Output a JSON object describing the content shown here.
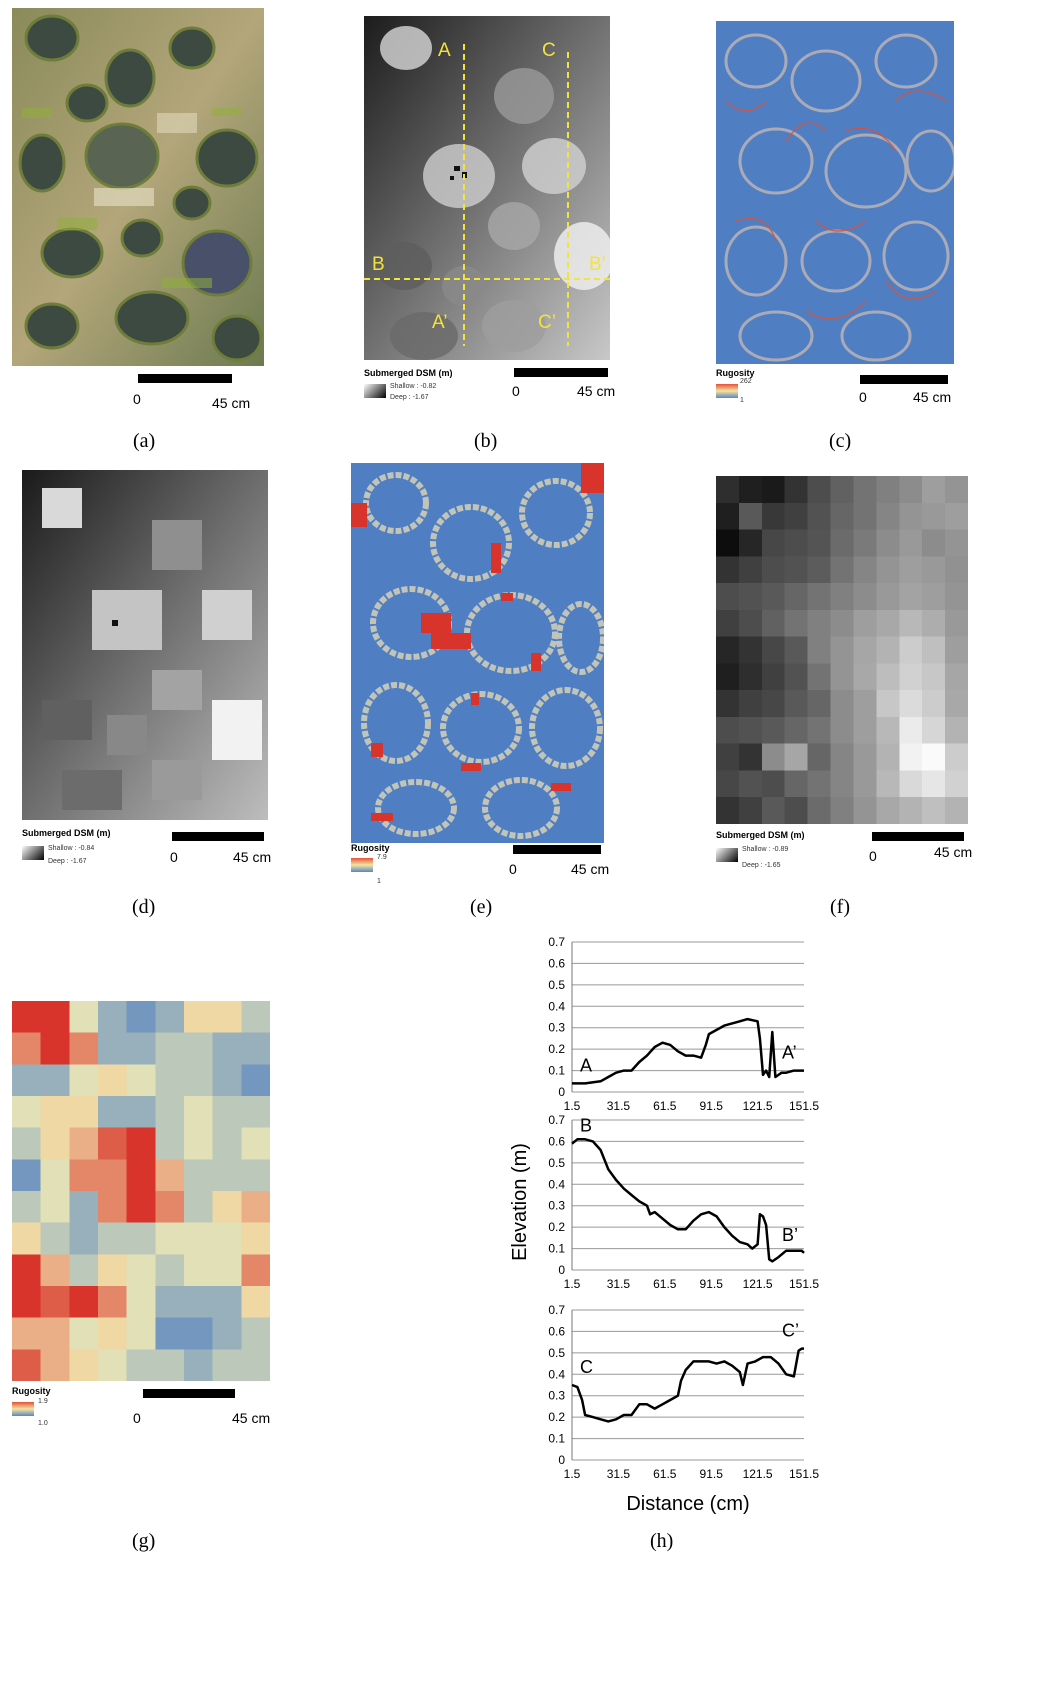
{
  "scale": {
    "zero": "0",
    "dist": "45 cm"
  },
  "captions": {
    "a": "(a)",
    "b": "(b)",
    "c": "(c)",
    "d": "(d)",
    "e": "(e)",
    "f": "(f)",
    "g": "(g)",
    "h": "(h)"
  },
  "panel_b": {
    "labels": {
      "A": "A",
      "A_prime": "A’",
      "B": "B",
      "B_prime": "B’",
      "C": "C",
      "C_prime": "C’"
    },
    "legend": {
      "title": "Submerged  DSM  (m)",
      "shallow": "Shallow : -0.82",
      "deep": "Deep : -1.67"
    }
  },
  "panel_c": {
    "legend": {
      "title": "Rugosity",
      "high": "262",
      "low": "1"
    }
  },
  "panel_d": {
    "legend": {
      "title": "Submerged  DSM  (m)",
      "shallow": "Shallow : -0.84",
      "deep": "Deep : -1.67"
    }
  },
  "panel_e": {
    "legend": {
      "title": "Rugosity",
      "high": "7.9",
      "low": "1"
    }
  },
  "panel_f": {
    "legend": {
      "title": "Submerged  DSM  (m)",
      "shallow": "Shallow : -0.89",
      "deep": "Deep : -1.65"
    },
    "grid": [
      [
        0.18,
        0.12,
        0.1,
        0.2,
        0.3,
        0.38,
        0.45,
        0.5,
        0.55,
        0.62,
        0.58
      ],
      [
        0.12,
        0.35,
        0.22,
        0.25,
        0.32,
        0.4,
        0.45,
        0.52,
        0.58,
        0.6,
        0.62
      ],
      [
        0.05,
        0.15,
        0.28,
        0.3,
        0.33,
        0.42,
        0.48,
        0.55,
        0.6,
        0.55,
        0.58
      ],
      [
        0.2,
        0.25,
        0.3,
        0.32,
        0.36,
        0.45,
        0.52,
        0.58,
        0.62,
        0.6,
        0.57
      ],
      [
        0.3,
        0.32,
        0.35,
        0.4,
        0.45,
        0.5,
        0.55,
        0.6,
        0.64,
        0.62,
        0.58
      ],
      [
        0.25,
        0.3,
        0.38,
        0.45,
        0.5,
        0.55,
        0.62,
        0.66,
        0.72,
        0.68,
        0.6
      ],
      [
        0.15,
        0.2,
        0.28,
        0.35,
        0.5,
        0.58,
        0.65,
        0.7,
        0.8,
        0.75,
        0.62
      ],
      [
        0.12,
        0.18,
        0.25,
        0.32,
        0.45,
        0.58,
        0.66,
        0.74,
        0.82,
        0.78,
        0.65
      ],
      [
        0.2,
        0.25,
        0.28,
        0.35,
        0.4,
        0.55,
        0.62,
        0.78,
        0.86,
        0.8,
        0.66
      ],
      [
        0.3,
        0.32,
        0.35,
        0.4,
        0.45,
        0.55,
        0.62,
        0.72,
        0.92,
        0.84,
        0.7
      ],
      [
        0.25,
        0.2,
        0.55,
        0.65,
        0.4,
        0.52,
        0.6,
        0.7,
        0.95,
        0.98,
        0.8
      ],
      [
        0.28,
        0.32,
        0.3,
        0.4,
        0.45,
        0.52,
        0.6,
        0.72,
        0.85,
        0.9,
        0.82
      ],
      [
        0.2,
        0.25,
        0.35,
        0.3,
        0.42,
        0.5,
        0.58,
        0.66,
        0.7,
        0.75,
        0.7
      ]
    ]
  },
  "panel_g": {
    "legend": {
      "title": "Rugosity",
      "high": "1.9",
      "low": "1.0"
    },
    "grid": [
      [
        1.9,
        1.9,
        1.4,
        1.2,
        1.1,
        1.2,
        1.5,
        1.5,
        1.3
      ],
      [
        1.7,
        1.9,
        1.7,
        1.2,
        1.2,
        1.3,
        1.3,
        1.2,
        1.2
      ],
      [
        1.2,
        1.2,
        1.4,
        1.5,
        1.4,
        1.3,
        1.3,
        1.2,
        1.1
      ],
      [
        1.4,
        1.5,
        1.5,
        1.2,
        1.2,
        1.3,
        1.4,
        1.3,
        1.3
      ],
      [
        1.3,
        1.5,
        1.6,
        1.8,
        1.9,
        1.3,
        1.4,
        1.3,
        1.4
      ],
      [
        1.1,
        1.4,
        1.7,
        1.7,
        1.9,
        1.6,
        1.3,
        1.3,
        1.3
      ],
      [
        1.3,
        1.4,
        1.2,
        1.7,
        1.9,
        1.7,
        1.3,
        1.5,
        1.6
      ],
      [
        1.5,
        1.3,
        1.2,
        1.3,
        1.3,
        1.4,
        1.4,
        1.4,
        1.5
      ],
      [
        1.9,
        1.6,
        1.3,
        1.5,
        1.4,
        1.3,
        1.4,
        1.4,
        1.7
      ],
      [
        1.9,
        1.8,
        1.9,
        1.7,
        1.4,
        1.2,
        1.2,
        1.2,
        1.5
      ],
      [
        1.6,
        1.6,
        1.4,
        1.5,
        1.4,
        1.1,
        1.1,
        1.2,
        1.3
      ],
      [
        1.8,
        1.6,
        1.5,
        1.4,
        1.3,
        1.3,
        1.2,
        1.3,
        1.3
      ]
    ]
  },
  "chart_data": {
    "type": "line",
    "xlabel": "Distance (cm)",
    "ylabel": "Elevation (m)",
    "xlim": [
      1.5,
      151.5
    ],
    "ylim": [
      0,
      0.7
    ],
    "x_ticks": [
      "1.5",
      "31.5",
      "61.5",
      "91.5",
      "121.5",
      "151.5"
    ],
    "y_ticks": [
      "0",
      "0.1",
      "0.2",
      "0.3",
      "0.4",
      "0.5",
      "0.6",
      "0.7"
    ],
    "grid": true,
    "profiles": [
      {
        "start": "A",
        "end": "A’",
        "x": [
          1.5,
          10,
          20,
          25,
          30,
          35,
          40,
          45,
          50,
          55,
          60,
          65,
          70,
          75,
          80,
          85,
          88,
          90,
          95,
          100,
          105,
          110,
          115,
          121.5,
          123,
          125,
          127,
          129,
          131,
          133,
          135,
          137,
          140,
          145,
          150,
          151.5
        ],
        "y": [
          0.04,
          0.04,
          0.05,
          0.07,
          0.09,
          0.1,
          0.1,
          0.14,
          0.17,
          0.21,
          0.23,
          0.22,
          0.19,
          0.17,
          0.17,
          0.16,
          0.22,
          0.27,
          0.29,
          0.31,
          0.32,
          0.33,
          0.34,
          0.33,
          0.25,
          0.08,
          0.1,
          0.07,
          0.28,
          0.07,
          0.08,
          0.09,
          0.09,
          0.1,
          0.1,
          0.1
        ]
      },
      {
        "start": "B",
        "end": "B’",
        "x": [
          1.5,
          5,
          10,
          15,
          20,
          25,
          30,
          35,
          40,
          45,
          50,
          52,
          55,
          60,
          65,
          70,
          75,
          80,
          85,
          90,
          95,
          100,
          105,
          110,
          115,
          118,
          121.5,
          123,
          125,
          127,
          129,
          131,
          135,
          140,
          145,
          150,
          151.5
        ],
        "y": [
          0.59,
          0.61,
          0.61,
          0.6,
          0.56,
          0.47,
          0.42,
          0.38,
          0.35,
          0.32,
          0.3,
          0.26,
          0.27,
          0.24,
          0.21,
          0.19,
          0.19,
          0.23,
          0.26,
          0.27,
          0.25,
          0.2,
          0.16,
          0.13,
          0.12,
          0.1,
          0.12,
          0.26,
          0.25,
          0.21,
          0.05,
          0.04,
          0.06,
          0.09,
          0.09,
          0.09,
          0.08
        ]
      },
      {
        "start": "C",
        "end": "C’",
        "x": [
          1.5,
          5,
          8,
          10,
          15,
          20,
          25,
          30,
          35,
          40,
          45,
          50,
          55,
          60,
          65,
          70,
          72,
          75,
          80,
          85,
          90,
          95,
          100,
          105,
          110,
          112,
          115,
          120,
          125,
          130,
          135,
          140,
          145,
          148,
          150,
          151.5
        ],
        "y": [
          0.35,
          0.34,
          0.28,
          0.21,
          0.2,
          0.19,
          0.18,
          0.19,
          0.21,
          0.21,
          0.26,
          0.26,
          0.24,
          0.26,
          0.28,
          0.3,
          0.37,
          0.42,
          0.46,
          0.46,
          0.46,
          0.45,
          0.46,
          0.44,
          0.41,
          0.35,
          0.45,
          0.46,
          0.48,
          0.48,
          0.45,
          0.4,
          0.39,
          0.51,
          0.52,
          0.52
        ]
      }
    ]
  }
}
